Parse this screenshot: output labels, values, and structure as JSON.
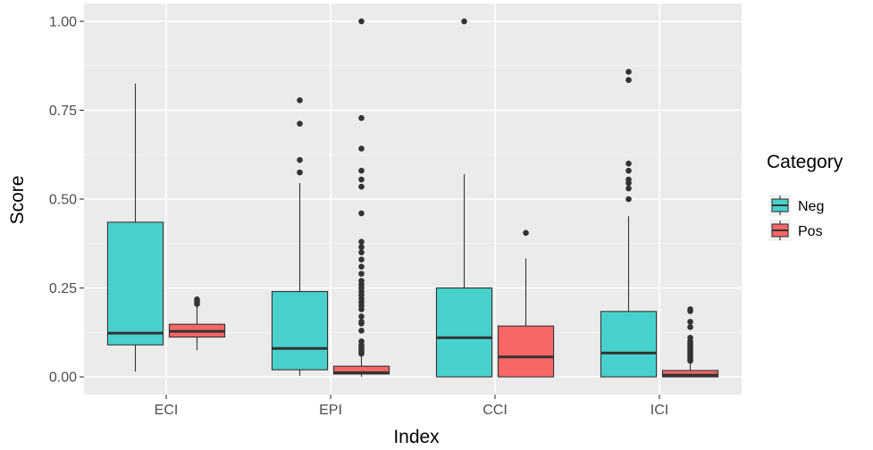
{
  "chart_data": {
    "type": "boxplot",
    "title": "",
    "xlabel": "Index",
    "ylabel": "Score",
    "ylim": [
      -0.05,
      1.05
    ],
    "yticks": [
      0.0,
      0.25,
      0.5,
      0.75,
      1.0
    ],
    "ytick_labels": [
      "0.00",
      "0.25",
      "0.50",
      "0.75",
      "1.00"
    ],
    "categories": [
      "ECI",
      "EPI",
      "CCI",
      "ICI"
    ],
    "grid": true,
    "legend": {
      "title": "Category",
      "position": "right"
    },
    "series": [
      {
        "name": "Neg",
        "color": "#48D1CC",
        "boxes": [
          {
            "min": 0.015,
            "q1": 0.09,
            "median": 0.123,
            "q3": 0.435,
            "max": 0.825,
            "outliers": []
          },
          {
            "min": 0.003,
            "q1": 0.02,
            "median": 0.08,
            "q3": 0.24,
            "max": 0.545,
            "outliers": [
              0.575,
              0.61,
              0.712,
              0.778
            ]
          },
          {
            "min": 0.0,
            "q1": 0.0,
            "median": 0.11,
            "q3": 0.25,
            "max": 0.57,
            "outliers": [
              1.0
            ]
          },
          {
            "min": 0.0,
            "q1": 0.0,
            "median": 0.067,
            "q3": 0.184,
            "max": 0.452,
            "outliers": [
              0.5,
              0.53,
              0.545,
              0.555,
              0.58,
              0.6,
              0.835,
              0.858
            ]
          }
        ]
      },
      {
        "name": "Pos",
        "color": "#F86666",
        "boxes": [
          {
            "min": 0.075,
            "q1": 0.112,
            "median": 0.128,
            "q3": 0.148,
            "max": 0.2,
            "outliers": [
              0.205,
              0.21,
              0.215,
              0.218
            ]
          },
          {
            "min": 0.0,
            "q1": 0.008,
            "median": 0.012,
            "q3": 0.03,
            "max": 0.06,
            "outliers": [
              0.065,
              0.07,
              0.075,
              0.08,
              0.085,
              0.09,
              0.1,
              0.13,
              0.15,
              0.155,
              0.17,
              0.19,
              0.2,
              0.21,
              0.22,
              0.23,
              0.24,
              0.25,
              0.26,
              0.27,
              0.29,
              0.31,
              0.33,
              0.35,
              0.365,
              0.38,
              0.46,
              0.535,
              0.555,
              0.58,
              0.642,
              0.728,
              1.0
            ]
          },
          {
            "min": 0.0,
            "q1": 0.0,
            "median": 0.056,
            "q3": 0.143,
            "max": 0.333,
            "outliers": [
              0.405
            ]
          },
          {
            "min": 0.0,
            "q1": 0.0,
            "median": 0.005,
            "q3": 0.018,
            "max": 0.04,
            "outliers": [
              0.045,
              0.05,
              0.055,
              0.06,
              0.065,
              0.07,
              0.075,
              0.08,
              0.085,
              0.09,
              0.095,
              0.1,
              0.11,
              0.14,
              0.155,
              0.185,
              0.19
            ]
          }
        ]
      }
    ]
  }
}
